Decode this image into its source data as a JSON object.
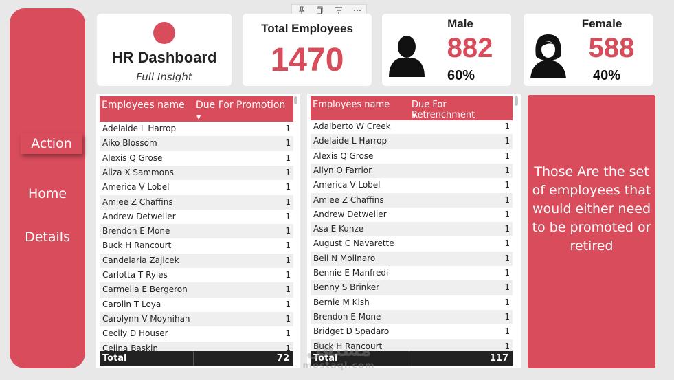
{
  "nav": {
    "action": "Action",
    "home": "Home",
    "details": "Details"
  },
  "logo": {
    "title": "HR Dashboard",
    "subtitle": "Full Insight"
  },
  "kpis": {
    "total": {
      "label": "Total Employees",
      "value": "1470"
    },
    "male": {
      "label": "Male",
      "value": "882",
      "pct": "60%"
    },
    "female": {
      "label": "Female",
      "value": "588",
      "pct": "40%"
    }
  },
  "colors": {
    "accent": "#d84c5b",
    "background": "#e8e8e8",
    "total_row": "#222222"
  },
  "icons": [
    "pin-icon",
    "copy-icon",
    "filter-icon",
    "more-options-icon",
    "male-avatar-icon",
    "female-avatar-icon"
  ],
  "promotion_table": {
    "headers": [
      "Employees name",
      "Due For Promotion"
    ],
    "rows": [
      [
        "Adelaide L Harrop",
        "1"
      ],
      [
        "Aiko Blossom",
        "1"
      ],
      [
        "Alexis Q Grose",
        "1"
      ],
      [
        "Aliza X Sammons",
        "1"
      ],
      [
        "America V Lobel",
        "1"
      ],
      [
        "Amiee Z Chaffins",
        "1"
      ],
      [
        "Andrew Detweiler",
        "1"
      ],
      [
        "Brendon E Mone",
        "1"
      ],
      [
        "Buck H Rancourt",
        "1"
      ],
      [
        "Candelaria Zajicek",
        "1"
      ],
      [
        "Carlotta T Ryles",
        "1"
      ],
      [
        "Carmelia E Bergeron",
        "1"
      ],
      [
        "Carolin T Loya",
        "1"
      ],
      [
        "Carolynn V Moynihan",
        "1"
      ],
      [
        "Cecily D Houser",
        "1"
      ],
      [
        "Celina Baskin",
        "1"
      ]
    ],
    "total_label": "Total",
    "total_value": "72"
  },
  "retrenchment_table": {
    "headers": [
      "Employees name",
      "Due For Retrenchment"
    ],
    "rows": [
      [
        "Adalberto W Creek",
        "1"
      ],
      [
        "Adelaide L Harrop",
        "1"
      ],
      [
        "Alexis Q Grose",
        "1"
      ],
      [
        "Allyn O Farrior",
        "1"
      ],
      [
        "America V Lobel",
        "1"
      ],
      [
        "Amiee Z Chaffins",
        "1"
      ],
      [
        "Andrew Detweiler",
        "1"
      ],
      [
        "Asa E Kunze",
        "1"
      ],
      [
        "August C Navarette",
        "1"
      ],
      [
        "Bell N Molinaro",
        "1"
      ],
      [
        "Bennie E Manfredi",
        "1"
      ],
      [
        "Benny S Brinker",
        "1"
      ],
      [
        "Bernie M Kish",
        "1"
      ],
      [
        "Brendon E Mone",
        "1"
      ],
      [
        "Bridget D Spadaro",
        "1"
      ],
      [
        "Buck H Rancourt",
        "1"
      ]
    ],
    "total_label": "Total",
    "total_value": "117"
  },
  "info": {
    "text": "Those Are the set of employees that would either need to be promoted or retired"
  }
}
